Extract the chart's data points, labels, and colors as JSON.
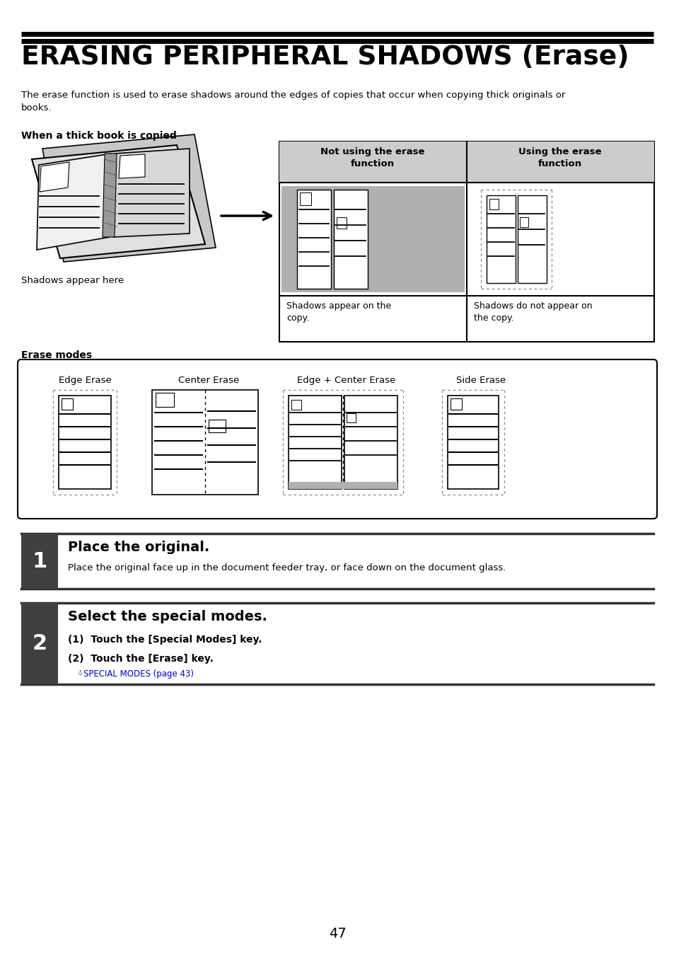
{
  "title": "ERASING PERIPHERAL SHADOWS (Erase)",
  "subtitle": "The erase function is used to erase shadows around the edges of copies that occur when copying thick originals or\nbooks.",
  "section1_label": "When a thick book is copied",
  "table_col1_header": "Not using the erase\nfunction",
  "table_col2_header": "Using the erase\nfunction",
  "table_col1_caption": "Shadows appear on the\ncopy.",
  "table_col2_caption": "Shadows do not appear on\nthe copy.",
  "shadows_label": "Shadows appear here",
  "erase_modes_label": "Erase modes",
  "mode_labels": [
    "Edge Erase",
    "Center Erase",
    "Edge + Center Erase",
    "Side Erase"
  ],
  "step1_num": "1",
  "step1_title": "Place the original.",
  "step1_body": "Place the original face up in the document feeder tray, or face down on the document glass.",
  "step2_num": "2",
  "step2_title": "Select the special modes.",
  "step2_body1": "(1)  Touch the [Special Modes] key.",
  "step2_body2": "(2)  Touch the [Erase] key.",
  "step2_link": "SPECIAL MODES (page 43)",
  "page_num": "47",
  "bg_color": "#ffffff",
  "step_num_bg": "#404040",
  "table_header_bg": "#cccccc",
  "shadow_fill": "#bbbbbb"
}
